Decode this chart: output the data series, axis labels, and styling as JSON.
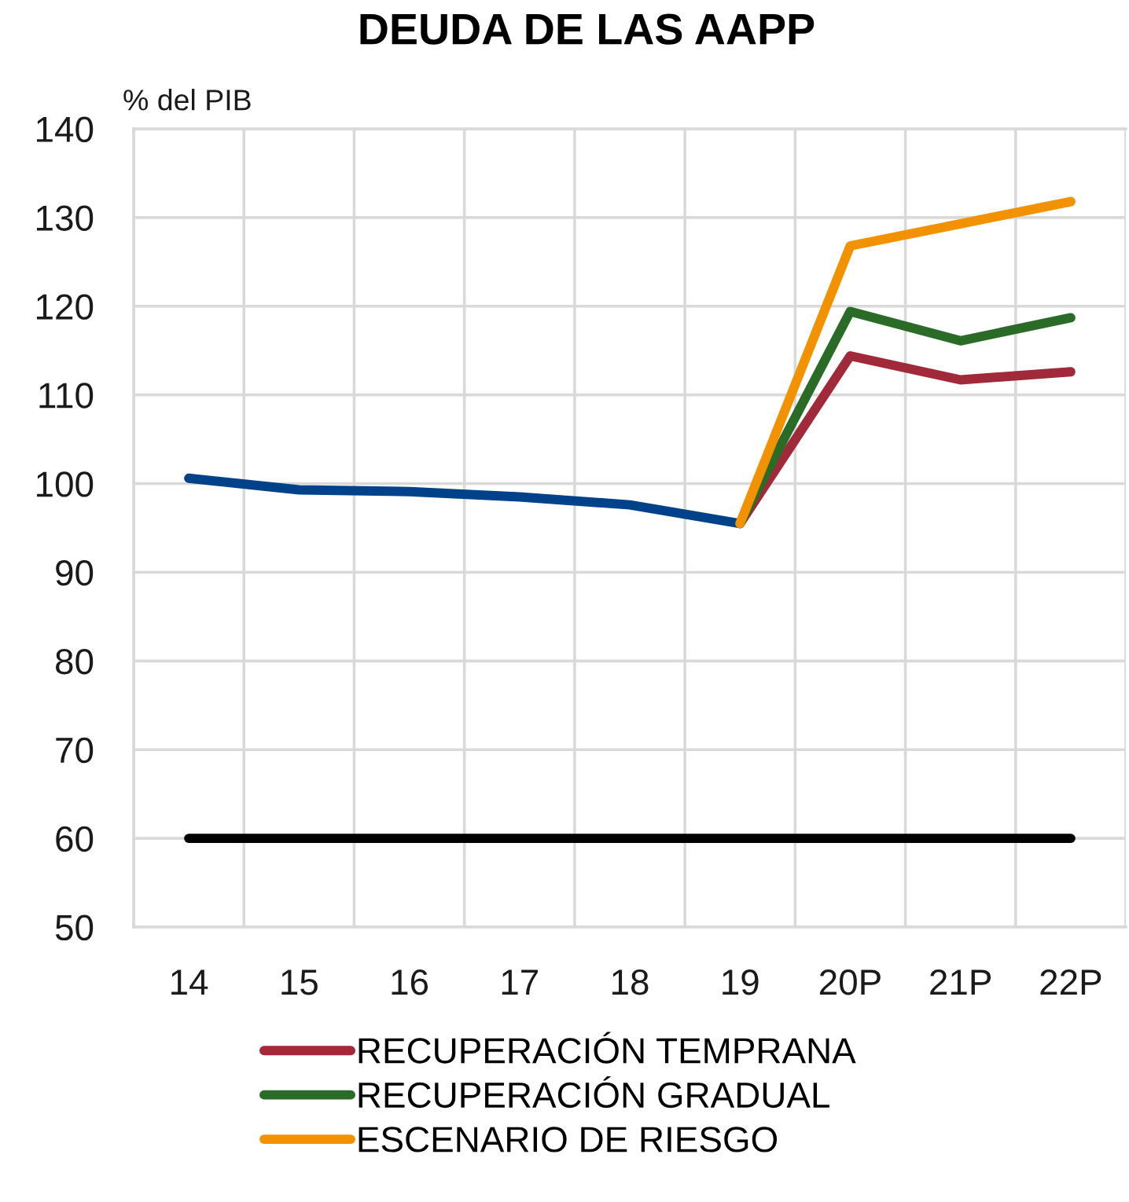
{
  "chart_data": {
    "type": "line",
    "title": "DEUDA DE LAS AAPP",
    "ylabel": "% del PIB",
    "categories": [
      "14",
      "15",
      "16",
      "17",
      "18",
      "19",
      "20P",
      "21P",
      "22P"
    ],
    "series": [
      {
        "color": "#00428a",
        "values": [
          100.6,
          99.3,
          99.1,
          98.5,
          97.6,
          95.5,
          null,
          null,
          null
        ]
      },
      {
        "name": "RECUPERACIÓN TEMPRANA",
        "color": "#a12a3a",
        "values": [
          null,
          null,
          null,
          null,
          null,
          95.5,
          114.4,
          111.7,
          112.6
        ]
      },
      {
        "name": "RECUPERACIÓN GRADUAL",
        "color": "#2b6b28",
        "values": [
          null,
          null,
          null,
          null,
          null,
          95.5,
          119.4,
          116.1,
          118.7
        ]
      },
      {
        "name": "ESCENARIO DE RIESGO",
        "color": "#f39200",
        "values": [
          null,
          null,
          null,
          null,
          null,
          95.5,
          126.8,
          129.3,
          131.8
        ]
      }
    ],
    "ref_lines": [
      {
        "axis": "y",
        "value": 60,
        "color": "#000000"
      }
    ],
    "ylim": [
      50,
      140
    ],
    "yticks": [
      50,
      60,
      70,
      80,
      90,
      100,
      110,
      120,
      130,
      140
    ],
    "grid": true,
    "legend": "bottom"
  }
}
